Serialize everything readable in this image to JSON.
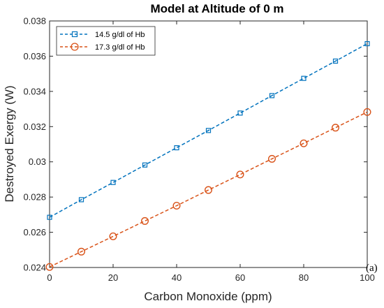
{
  "chart_data": {
    "type": "line",
    "title": "Model at Altitude of 0 m",
    "xlabel": "Carbon Monoxide (ppm)",
    "ylabel": "Destroyed Exergy (W)",
    "xlim": [
      0,
      100
    ],
    "ylim": [
      0.024,
      0.038
    ],
    "xticks": [
      0,
      20,
      40,
      60,
      80,
      100
    ],
    "xtick_labels": [
      "0",
      "20",
      "40",
      "60",
      "80",
      "100"
    ],
    "yticks": [
      0.024,
      0.026,
      0.028,
      0.03,
      0.032,
      0.034,
      0.036,
      0.038
    ],
    "ytick_labels": [
      "0.024",
      "0.026",
      "0.028",
      "0.03",
      "0.032",
      "0.034",
      "0.036",
      "0.038"
    ],
    "grid": false,
    "legend_position": "top-left",
    "panel_label": "(a)",
    "x": [
      0,
      10,
      20,
      30,
      40,
      50,
      60,
      70,
      80,
      90,
      100
    ],
    "series": [
      {
        "name": "14.5 g/dl of Hb",
        "color": "#0072BD",
        "marker": "square",
        "line_style": "dashed",
        "values": [
          0.02685,
          0.02785,
          0.02883,
          0.02982,
          0.0308,
          0.03178,
          0.03277,
          0.03376,
          0.03474,
          0.03572,
          0.03671
        ]
      },
      {
        "name": "17.3 g/dl of Hb",
        "color": "#D95319",
        "marker": "circle",
        "line_style": "dashed",
        "values": [
          0.02403,
          0.0249,
          0.02577,
          0.02664,
          0.02751,
          0.0284,
          0.02928,
          0.03017,
          0.03105,
          0.03194,
          0.03283
        ]
      }
    ]
  }
}
